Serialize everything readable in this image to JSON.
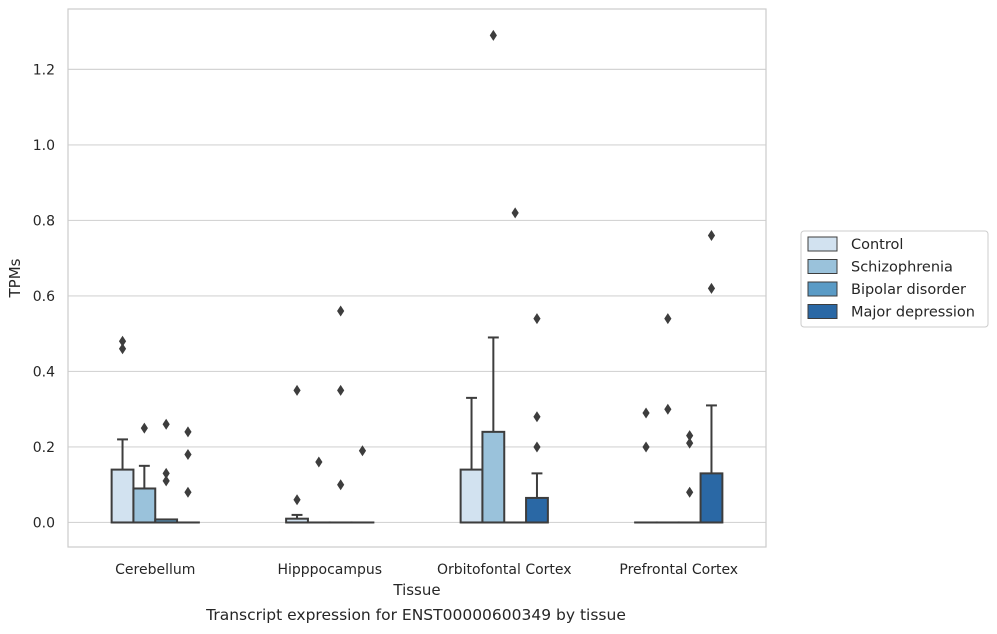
{
  "caption": "Transcript expression for ENST00000600349 by tissue",
  "chart_data": {
    "type": "box",
    "xlabel": "Tissue",
    "ylabel": "TPMs",
    "ylim": [
      -0.065,
      1.36
    ],
    "yticks": [
      0.0,
      0.2,
      0.4,
      0.6,
      0.8,
      1.0,
      1.2
    ],
    "ytick_labels": [
      "0.0",
      "0.2",
      "0.4",
      "0.6",
      "0.8",
      "1.0",
      "1.2"
    ],
    "grid": "horizontal",
    "legend_position": "right",
    "categories": [
      "Cerebellum",
      "Hipppocampus",
      "Orbitofontal Cortex",
      "Prefrontal Cortex"
    ],
    "series": [
      {
        "name": "Control",
        "color": "#d2e2f0",
        "boxes": [
          {
            "q1": 0.0,
            "median": 0.0,
            "q3": 0.14,
            "whisker_low": 0.0,
            "whisker_high": 0.22,
            "outliers": [
              0.48,
              0.46
            ]
          },
          {
            "q1": 0.0,
            "median": 0.0,
            "q3": 0.01,
            "whisker_low": 0.0,
            "whisker_high": 0.02,
            "outliers": [
              0.35,
              0.06
            ]
          },
          {
            "q1": 0.0,
            "median": 0.0,
            "q3": 0.14,
            "whisker_low": 0.0,
            "whisker_high": 0.33,
            "outliers": []
          },
          {
            "q1": 0.0,
            "median": 0.0,
            "q3": 0.0,
            "whisker_low": 0.0,
            "whisker_high": 0.0,
            "outliers": [
              0.29,
              0.2
            ]
          }
        ]
      },
      {
        "name": "Schizophrenia",
        "color": "#9ac2db",
        "boxes": [
          {
            "q1": 0.0,
            "median": 0.0,
            "q3": 0.09,
            "whisker_low": 0.0,
            "whisker_high": 0.15,
            "outliers": [
              0.25
            ]
          },
          {
            "q1": 0.0,
            "median": 0.0,
            "q3": 0.0,
            "whisker_low": 0.0,
            "whisker_high": 0.0,
            "outliers": [
              0.16
            ]
          },
          {
            "q1": 0.0,
            "median": 0.0,
            "q3": 0.24,
            "whisker_low": 0.0,
            "whisker_high": 0.49,
            "outliers": [
              1.29
            ]
          },
          {
            "q1": 0.0,
            "median": 0.0,
            "q3": 0.0,
            "whisker_low": 0.0,
            "whisker_high": 0.0,
            "outliers": [
              0.54,
              0.3
            ]
          }
        ]
      },
      {
        "name": "Bipolar disorder",
        "color": "#5a9bc6",
        "boxes": [
          {
            "q1": 0.0,
            "median": 0.0,
            "q3": 0.008,
            "whisker_low": 0.0,
            "whisker_high": 0.008,
            "outliers": [
              0.26,
              0.13,
              0.11
            ]
          },
          {
            "q1": 0.0,
            "median": 0.0,
            "q3": 0.0,
            "whisker_low": 0.0,
            "whisker_high": 0.0,
            "outliers": [
              0.56,
              0.35,
              0.1
            ]
          },
          {
            "q1": 0.0,
            "median": 0.0,
            "q3": 0.0,
            "whisker_low": 0.0,
            "whisker_high": 0.0,
            "outliers": [
              0.82
            ]
          },
          {
            "q1": 0.0,
            "median": 0.0,
            "q3": 0.0,
            "whisker_low": 0.0,
            "whisker_high": 0.0,
            "outliers": [
              0.23,
              0.21,
              0.08
            ]
          }
        ]
      },
      {
        "name": "Major depression",
        "color": "#2a68a5",
        "boxes": [
          {
            "q1": 0.0,
            "median": 0.0,
            "q3": 0.0,
            "whisker_low": 0.0,
            "whisker_high": 0.0,
            "outliers": [
              0.24,
              0.18,
              0.08
            ]
          },
          {
            "q1": 0.0,
            "median": 0.0,
            "q3": 0.0,
            "whisker_low": 0.0,
            "whisker_high": 0.0,
            "outliers": [
              0.19
            ]
          },
          {
            "q1": 0.0,
            "median": 0.0,
            "q3": 0.065,
            "whisker_low": 0.0,
            "whisker_high": 0.13,
            "outliers": [
              0.54,
              0.28,
              0.2
            ]
          },
          {
            "q1": 0.0,
            "median": 0.0,
            "q3": 0.13,
            "whisker_low": 0.0,
            "whisker_high": 0.31,
            "outliers": [
              0.76,
              0.62
            ]
          }
        ]
      }
    ]
  }
}
